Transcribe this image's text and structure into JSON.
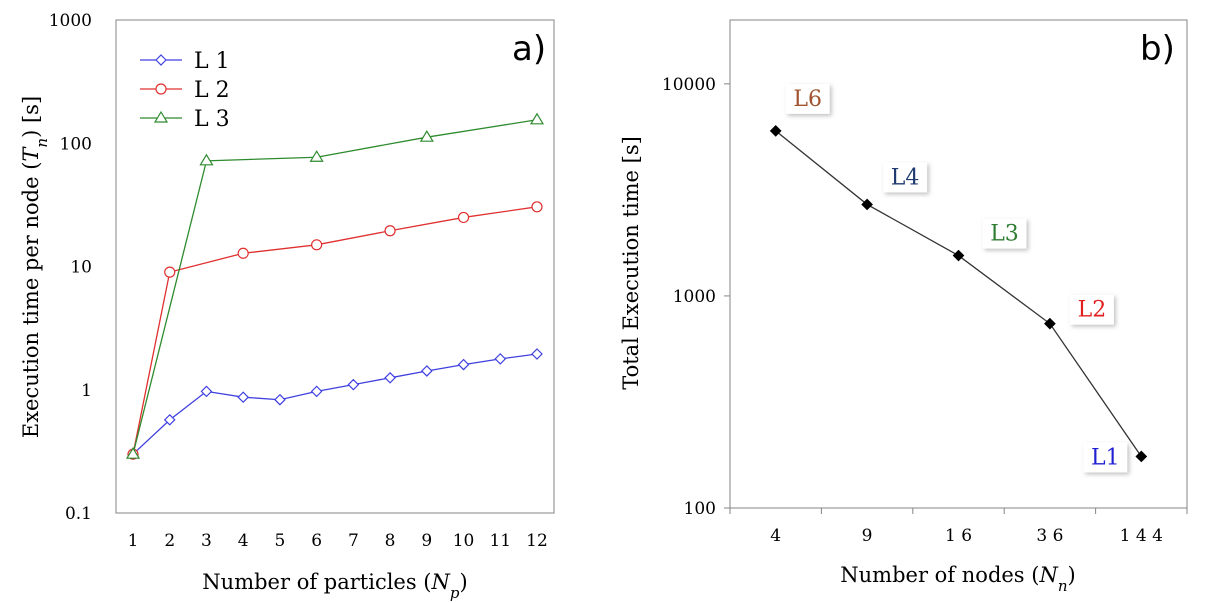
{
  "chart_data": [
    {
      "type": "line",
      "panel_label": "a)",
      "xlabel_main": "Number of particles (",
      "xlabel_var": "N",
      "xlabel_sub": "p",
      "xlabel_close": ")",
      "ylabel_main": "Execution time per node (",
      "ylabel_var": "T",
      "ylabel_sub": "n",
      "ylabel_close": ") [s]",
      "x_categories": [
        "1",
        "2",
        "3",
        "4",
        "5",
        "6",
        "7",
        "8",
        "9",
        "10",
        "11",
        "12"
      ],
      "y_scale": "log",
      "ylim": [
        0.1,
        1000
      ],
      "y_tick_labels": [
        "0.1",
        "1",
        "10",
        "100",
        "1000"
      ],
      "legend_position": "top-left",
      "series": [
        {
          "name": "L 1",
          "color": "#4040e0",
          "marker": "diamond",
          "x": [
            1,
            2,
            3,
            4,
            5,
            6,
            7,
            8,
            9,
            10,
            11,
            12
          ],
          "y": [
            0.3,
            0.57,
            0.97,
            0.87,
            0.83,
            0.97,
            1.1,
            1.25,
            1.42,
            1.6,
            1.78,
            1.95
          ]
        },
        {
          "name": "L 2",
          "color": "#e03030",
          "marker": "circle",
          "x": [
            1,
            2,
            4,
            6,
            8,
            10,
            12
          ],
          "y": [
            0.3,
            9,
            12.8,
            15,
            19.5,
            25,
            30.5
          ]
        },
        {
          "name": "L 3",
          "color": "#2e8b2e",
          "marker": "triangle",
          "x": [
            1,
            3,
            6,
            9,
            12
          ],
          "y": [
            0.3,
            72,
            77,
            112,
            155
          ]
        }
      ]
    },
    {
      "type": "line",
      "panel_label": "b)",
      "xlabel_main": "Number of nodes (",
      "xlabel_var": "N",
      "xlabel_sub": "n",
      "xlabel_close": ")",
      "ylabel": "Total Execution time [s]",
      "x_categories": [
        "4",
        "9",
        "1 6",
        "3 6",
        "1 4 4"
      ],
      "y_scale": "log",
      "ylim": [
        100,
        20000
      ],
      "y_tick_labels": [
        "100",
        "1000",
        "10000"
      ],
      "series": [
        {
          "color": "#333333",
          "marker": "diamond",
          "x": [
            "4",
            "9",
            "1 6",
            "3 6",
            "1 4 4"
          ],
          "y": [
            6000,
            2700,
            1550,
            740,
            175
          ]
        }
      ],
      "annotations": [
        {
          "text": "L6",
          "color": "#a0522d"
        },
        {
          "text": "L4",
          "color": "#1f3a6e"
        },
        {
          "text": "L3",
          "color": "#2e7d32"
        },
        {
          "text": "L2",
          "color": "#e02020"
        },
        {
          "text": "L1",
          "color": "#2020d0"
        }
      ]
    }
  ]
}
